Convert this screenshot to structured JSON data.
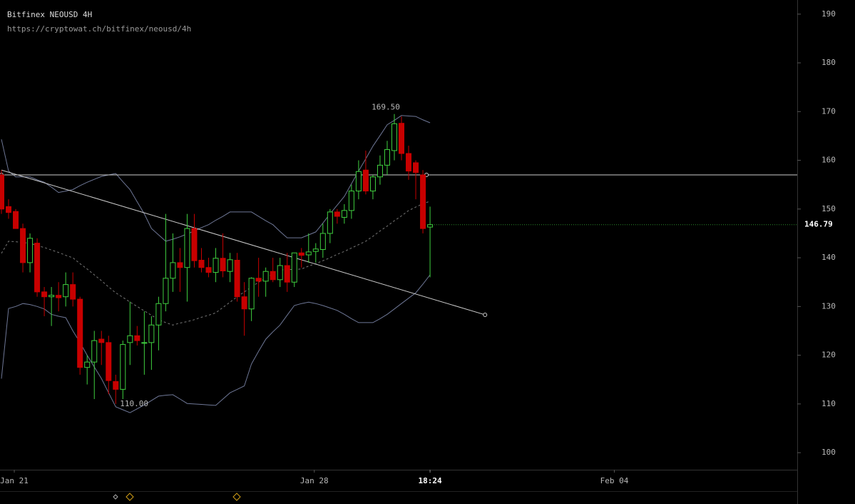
{
  "chart_data": {
    "type": "candlestick",
    "title": "Bitfinex NEOUSD 4H",
    "subtitle": "https://cryptowat.ch/bitfinex/neousd/4h",
    "categories": [
      null,
      null,
      null,
      null,
      null,
      null,
      null,
      null,
      null,
      null,
      null,
      null,
      null,
      null,
      null,
      null,
      null,
      null,
      null,
      null,
      null,
      null,
      null,
      null,
      null,
      null,
      null,
      null,
      null,
      null,
      null,
      null,
      null,
      null,
      null,
      null,
      null,
      null,
      null,
      null,
      null,
      null,
      null,
      null,
      null,
      null,
      null,
      null,
      null,
      null,
      null,
      null,
      null,
      null,
      null,
      null,
      null,
      null,
      null,
      null,
      null
    ],
    "open": [
      157,
      150.5,
      149.5,
      146,
      139,
      143,
      133,
      132,
      132.3,
      132,
      134.5,
      131.5,
      117.5,
      118.6,
      123.3,
      122.6,
      114.6,
      113,
      122.6,
      124,
      122.5,
      122.6,
      126.2,
      130.6,
      135.8,
      139,
      138,
      146,
      139.5,
      138,
      137,
      139.9,
      137.2,
      139.5,
      132,
      129.5,
      135.8,
      135.2,
      137.2,
      135.5,
      138.4,
      135,
      141,
      140.6,
      141.3,
      141.7,
      145,
      149.4,
      148.3,
      149.7,
      153.7,
      158,
      153.7,
      156.6,
      159,
      162,
      167.6,
      161.4,
      159.5,
      157,
      146.3
    ],
    "high": [
      158,
      152,
      150,
      147,
      145,
      144,
      134,
      134,
      135,
      137,
      137,
      132,
      120,
      125,
      125,
      124,
      116,
      123,
      131,
      126,
      129,
      128,
      132,
      149,
      145,
      142,
      149,
      149,
      142,
      140,
      142,
      145,
      141,
      141,
      135,
      136,
      140,
      138,
      140,
      140,
      141,
      141,
      142,
      145,
      143,
      147,
      150,
      150,
      151,
      155,
      160,
      162,
      157,
      161,
      164,
      169.5,
      169,
      163,
      160,
      158,
      150.5
    ],
    "low": [
      149,
      148,
      146,
      137,
      137,
      132,
      128,
      126,
      129,
      130,
      130,
      116,
      114,
      111,
      118,
      112,
      110,
      111,
      118,
      122,
      116,
      117,
      121,
      129,
      133,
      133,
      131,
      138,
      137,
      136,
      135,
      136,
      135,
      131,
      124,
      127,
      132,
      132,
      135,
      134,
      133,
      134,
      138,
      139,
      139,
      140,
      143,
      147,
      147,
      148,
      152,
      153,
      152,
      155,
      157,
      160,
      160,
      156,
      152,
      145,
      136
    ],
    "close": [
      150,
      149.3,
      146,
      139,
      144,
      133,
      132,
      132.3,
      131.8,
      134.5,
      131.5,
      117.5,
      118.6,
      123,
      122.6,
      114.8,
      113,
      122.2,
      124,
      123,
      122.6,
      126.2,
      130.6,
      135.8,
      139,
      138,
      146,
      139.4,
      138,
      137,
      139.9,
      137.3,
      139.6,
      132,
      129.5,
      135.8,
      135.2,
      137.2,
      135.5,
      138.4,
      135,
      141,
      140.5,
      141.2,
      141.8,
      145,
      149.4,
      148.5,
      149.7,
      153.7,
      157.7,
      153.7,
      156.6,
      159,
      162.2,
      167.5,
      161.4,
      157.8,
      157.5,
      146,
      146.79
    ],
    "up_color": "#3fcf3f",
    "down_color": "#c80000",
    "bands": {
      "color": "#6e7796",
      "middle_color": "#777777",
      "upper": [
        164.3,
        157.8,
        156.6,
        156.6,
        156.6,
        156,
        155.5,
        154.5,
        153.4,
        153.7,
        154,
        154.8,
        155.5,
        156.1,
        156.7,
        157,
        157.3,
        155.6,
        154,
        151.5,
        149,
        146,
        144.7,
        143.4,
        143.8,
        144.3,
        144.9,
        145.5,
        146.2,
        146.8,
        147.7,
        148.5,
        149.4,
        149.4,
        149.4,
        149.4,
        148.5,
        147.6,
        146.8,
        145.4,
        144.1,
        144.1,
        144.1,
        144.7,
        145.3,
        147.1,
        149,
        150.8,
        152.6,
        155.2,
        157.8,
        160.3,
        162.9,
        165.1,
        167.3,
        168.2,
        169.2,
        169.1,
        169,
        168.3,
        167.7
      ],
      "middle": [
        140.9,
        143.4,
        143.3,
        143.1,
        143,
        142.5,
        142.1,
        141.6,
        141.1,
        140.5,
        140,
        138.8,
        137.7,
        136.5,
        135.3,
        134,
        132.8,
        131.9,
        130.9,
        130,
        129.1,
        128.2,
        127.3,
        126.7,
        126.2,
        126.6,
        126.9,
        127.3,
        127.8,
        128.2,
        128.7,
        129.8,
        130.9,
        132,
        133,
        134,
        135,
        135.8,
        136.7,
        137.5,
        137.6,
        137.6,
        137.7,
        138.3,
        138.8,
        139.4,
        140,
        140.7,
        141.3,
        142,
        142.7,
        143.4,
        144.4,
        145.5,
        146.5,
        147.6,
        148.6,
        149.7,
        150.4,
        151.1,
        151.6
      ],
      "lower": [
        115.2,
        129.6,
        130,
        130.6,
        130.4,
        130,
        129.5,
        128.4,
        128,
        127.7,
        125,
        122.6,
        120,
        117.6,
        115.2,
        112.3,
        109.4,
        108.8,
        108.2,
        109,
        109.8,
        110.7,
        111.6,
        111.8,
        111.9,
        111,
        110.1,
        110,
        109.9,
        109.8,
        109.7,
        111,
        112.3,
        113,
        113.7,
        118.2,
        120.8,
        123.3,
        124.8,
        126.2,
        128.2,
        130.2,
        130.6,
        130.9,
        130.6,
        130.2,
        129.7,
        129.2,
        128.4,
        127.5,
        126.7,
        126.7,
        126.7,
        127.5,
        128.4,
        129.5,
        130.6,
        131.7,
        132.8,
        134.6,
        136.5
      ]
    },
    "trend_line": {
      "x": [
        0,
        67.7
      ],
      "values": [
        158,
        128.3
      ],
      "color": "#cccccc"
    },
    "hline": {
      "value": 157,
      "color": "#cccccc"
    },
    "high_label": {
      "value": 169.5,
      "label": "169.50"
    },
    "low_label": {
      "value": 110,
      "label": "110.00"
    },
    "current_time_label": "18:24",
    "xlim": [
      -0.2,
      111.4
    ],
    "xticks": [
      {
        "value": 1.8,
        "label": "Jan 21"
      },
      {
        "value": 43.8,
        "label": "Jan 28"
      },
      {
        "value": 85.8,
        "label": "Feb 04"
      }
    ],
    "ylim": [
      96.5,
      192.9
    ],
    "yticks": [
      100,
      110,
      120,
      130,
      140,
      150,
      160,
      170,
      180,
      190
    ],
    "grid": false
  }
}
